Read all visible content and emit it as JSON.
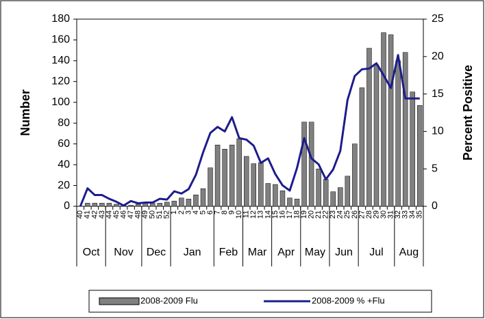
{
  "chart_data": {
    "type": "bar_line",
    "y_label": "Number",
    "y2_label": "Percent Positive",
    "categories": [
      "40",
      "41",
      "42",
      "43",
      "44",
      "45",
      "46",
      "47",
      "48",
      "49",
      "50",
      "51",
      "52",
      "1",
      "2",
      "3",
      "4",
      "5",
      "6",
      "7",
      "8",
      "9",
      "10",
      "11",
      "12",
      "13",
      "14",
      "15",
      "16",
      "17",
      "18",
      "19",
      "20",
      "21",
      "22",
      "23",
      "24",
      "25",
      "26",
      "27",
      "28",
      "29",
      "30",
      "31",
      "32",
      "33",
      "34",
      "35"
    ],
    "month_groups": [
      {
        "name": "Oct",
        "weeks": 4
      },
      {
        "name": "Nov",
        "weeks": 5
      },
      {
        "name": "Dec",
        "weeks": 4
      },
      {
        "name": "Jan",
        "weeks": 6
      },
      {
        "name": "Feb",
        "weeks": 4
      },
      {
        "name": "Mar",
        "weeks": 4
      },
      {
        "name": "Apr",
        "weeks": 4
      },
      {
        "name": "May",
        "weeks": 4
      },
      {
        "name": "Jun",
        "weeks": 4
      },
      {
        "name": "Jul",
        "weeks": 5
      },
      {
        "name": "Aug",
        "weeks": 4
      }
    ],
    "series": [
      {
        "name": "2008-2009 Flu",
        "kind": "bar",
        "color": "#808080",
        "values": [
          0,
          3,
          3,
          3,
          3,
          2,
          1,
          1,
          2,
          3,
          3,
          3,
          4,
          5,
          8,
          7,
          11,
          17,
          37,
          59,
          55,
          59,
          65,
          48,
          41,
          42,
          22,
          21,
          15,
          8,
          7,
          81,
          81,
          36,
          26,
          14,
          18,
          29,
          60,
          114,
          152,
          136,
          167,
          165,
          140,
          148,
          110,
          97
        ]
      },
      {
        "name": "2008-2009 % +Flu",
        "kind": "line",
        "axis": "y2",
        "color": "#1c1c8c",
        "values": [
          0,
          2.4,
          1.5,
          1.5,
          1.0,
          0.6,
          0.1,
          0.7,
          0.4,
          0.5,
          0.5,
          1.0,
          0.9,
          2.0,
          1.7,
          2.3,
          4.2,
          7.2,
          9.8,
          10.6,
          10.0,
          11.9,
          9.1,
          8.9,
          8.1,
          5.8,
          6.4,
          4.3,
          2.8,
          2.1,
          5.1,
          9.1,
          6.4,
          5.6,
          3.6,
          4.9,
          7.4,
          14.2,
          17.4,
          18.3,
          18.4,
          19.1,
          17.5,
          15.8,
          20.2,
          14.4,
          14.4,
          14.4
        ]
      }
    ],
    "ylim": [
      0,
      180
    ],
    "yticks": [
      0,
      20,
      40,
      60,
      80,
      100,
      120,
      140,
      160,
      180
    ],
    "y2lim": [
      0,
      25
    ],
    "y2ticks": [
      0,
      5,
      10,
      15,
      20,
      25
    ]
  }
}
